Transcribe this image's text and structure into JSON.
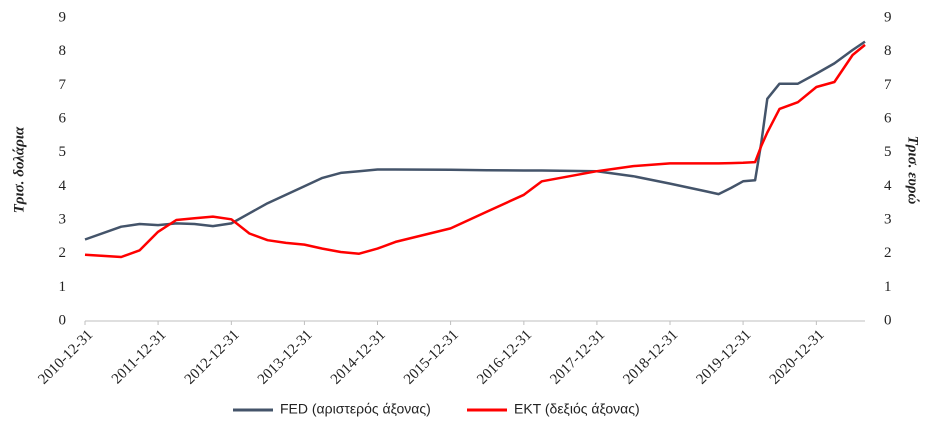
{
  "chart_data": {
    "type": "line",
    "y_label": "Τρισ. δολάρια",
    "y2_label": "Τρισ. ευρώ",
    "x": [
      "2010-12-31",
      "2011-06-30",
      "2011-09-30",
      "2011-12-31",
      "2012-03-31",
      "2012-06-30",
      "2012-09-30",
      "2012-12-31",
      "2013-03-31",
      "2013-06-30",
      "2013-09-30",
      "2013-12-31",
      "2014-03-31",
      "2014-06-30",
      "2014-09-30",
      "2014-12-31",
      "2015-03-31",
      "2015-12-31",
      "2016-06-30",
      "2016-12-31",
      "2017-03-31",
      "2017-12-31",
      "2018-06-30",
      "2018-12-31",
      "2019-06-30",
      "2019-08-31",
      "2019-10-31",
      "2019-12-31",
      "2020-02-29",
      "2020-03-31",
      "2020-04-30",
      "2020-06-30",
      "2020-09-30",
      "2020-12-31",
      "2021-03-31",
      "2021-06-30",
      "2021-08-31"
    ],
    "series": [
      {
        "name": "FED (αριστερός άξονας)",
        "color": "#44546a",
        "values": [
          2.42,
          2.8,
          2.88,
          2.85,
          2.9,
          2.88,
          2.82,
          2.9,
          3.2,
          3.5,
          3.75,
          4.0,
          4.25,
          4.4,
          4.45,
          4.5,
          4.5,
          4.49,
          4.48,
          4.47,
          4.47,
          4.45,
          4.3,
          4.08,
          3.85,
          3.77,
          3.95,
          4.15,
          4.18,
          5.3,
          6.6,
          7.05,
          7.05,
          7.35,
          7.65,
          8.05,
          8.3
        ]
      },
      {
        "name": "ΕΚΤ (δεξιός άξονας)",
        "color": "#ff0000",
        "axis": "y2",
        "values": [
          1.97,
          1.9,
          2.1,
          2.65,
          3.0,
          3.05,
          3.1,
          3.02,
          2.6,
          2.4,
          2.32,
          2.27,
          2.15,
          2.05,
          2.0,
          2.15,
          2.35,
          2.75,
          3.25,
          3.75,
          4.15,
          4.45,
          4.6,
          4.68,
          4.68,
          4.68,
          4.69,
          4.7,
          4.72,
          5.2,
          5.6,
          6.3,
          6.5,
          6.95,
          7.1,
          7.9,
          8.2
        ]
      }
    ],
    "xlim": [
      "2010-12-31",
      "2021-08-31"
    ],
    "xticks": [
      "2010-12-31",
      "2011-12-31",
      "2012-12-31",
      "2013-12-31",
      "2014-12-31",
      "2015-12-31",
      "2016-12-31",
      "2017-12-31",
      "2018-12-31",
      "2019-12-31",
      "2020-12-31"
    ],
    "ylim": [
      0,
      9
    ],
    "yticks": [
      0,
      1,
      2,
      3,
      4,
      5,
      6,
      7,
      8,
      9
    ],
    "y2lim": [
      0,
      9
    ],
    "y2ticks": [
      0,
      1,
      2,
      3,
      4,
      5,
      6,
      7,
      8,
      9
    ],
    "legend": "bottom"
  }
}
